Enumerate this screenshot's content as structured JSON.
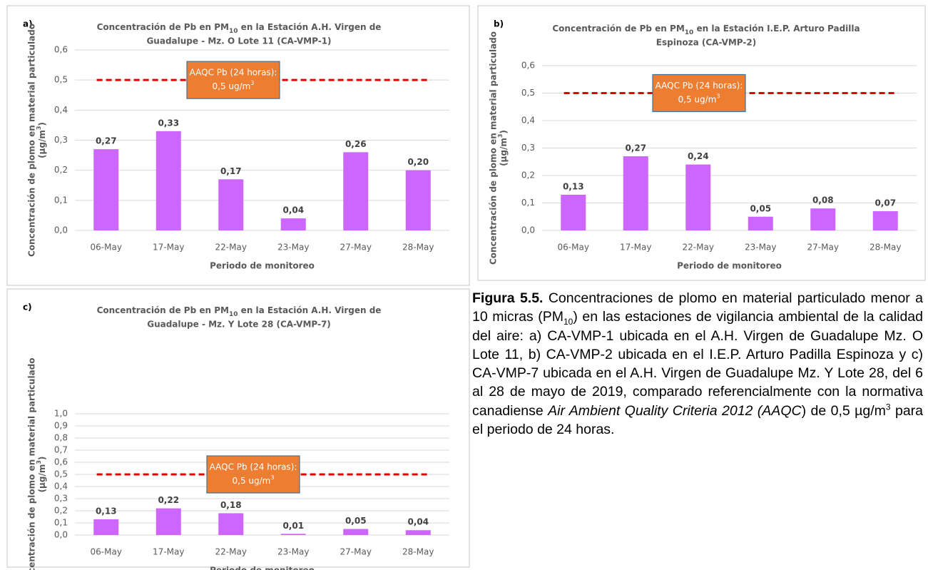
{
  "chart_data": [
    {
      "type": "bar",
      "panel_label": "a)",
      "title": [
        "Concentración de Pb en PM",
        "10",
        " en la Estación A.H. Virgen de",
        "Guadalupe - Mz. O Lote 11 (CA-VMP-1)"
      ],
      "categories": [
        "06-May",
        "17-May",
        "22-May",
        "23-May",
        "27-May",
        "28-May"
      ],
      "values": [
        0.27,
        0.33,
        0.17,
        0.04,
        0.26,
        0.2
      ],
      "value_labels": [
        "0,27",
        "0,33",
        "0,17",
        "0,04",
        "0,26",
        "0,20"
      ],
      "color": "#cc66ff",
      "ylim": [
        0,
        0.6
      ],
      "yticks": [
        {
          "value": 0,
          "label": "0,0"
        },
        {
          "value": 0.1,
          "label": "0,1"
        },
        {
          "value": 0.2,
          "label": "0,2"
        },
        {
          "value": 0.3,
          "label": "0,3"
        },
        {
          "value": 0.4,
          "label": "0,4"
        },
        {
          "value": 0.5,
          "label": "0,5"
        },
        {
          "value": 0.6,
          "label": "0,6"
        }
      ],
      "grid": true,
      "y_label": [
        "Concentración de plomo en material particulado",
        "(µg/m",
        "3",
        ")"
      ],
      "x_label": "Periodo de monitoreo",
      "reference_line": {
        "value": 0.5,
        "color": "#e00000"
      },
      "annotation": [
        "AAQC Pb (24 horas):",
        "0,5 ug/m",
        "3"
      ]
    },
    {
      "type": "bar",
      "panel_label": "b)",
      "title": [
        "Concentración de Pb en PM",
        "10",
        " en la Estación I.E.P. Arturo Padilla",
        "Espinoza (CA-VMP-2)"
      ],
      "categories": [
        "06-May",
        "17-May",
        "22-May",
        "23-May",
        "27-May",
        "28-May"
      ],
      "values": [
        0.13,
        0.27,
        0.24,
        0.05,
        0.08,
        0.07
      ],
      "value_labels": [
        "0,13",
        "0,27",
        "0,24",
        "0,05",
        "0,08",
        "0,07"
      ],
      "color": "#cc66ff",
      "ylim": [
        0,
        0.6
      ],
      "yticks": [
        {
          "value": 0,
          "label": "0,0"
        },
        {
          "value": 0.1,
          "label": "0,1"
        },
        {
          "value": 0.2,
          "label": "0,2"
        },
        {
          "value": 0.3,
          "label": "0,3"
        },
        {
          "value": 0.4,
          "label": "0,4"
        },
        {
          "value": 0.5,
          "label": "0,5"
        },
        {
          "value": 0.6,
          "label": "0,6"
        }
      ],
      "grid": true,
      "y_label": [
        "Concentración de plomo en material particulado",
        "(µg/m",
        "3",
        ")"
      ],
      "x_label": "Periodo de monitoreo",
      "reference_line": {
        "value": 0.5,
        "color": "#e00000"
      },
      "annotation": [
        "AAQC Pb (24 horas):",
        "0,5 ug/m",
        "3"
      ]
    },
    {
      "type": "bar",
      "panel_label": "c)",
      "title": [
        "Concentración de Pb en PM",
        "10",
        " en la Estación A.H. Virgen de",
        "Guadalupe - Mz. Y Lote 28 (CA-VMP-7)"
      ],
      "categories": [
        "06-May",
        "17-May",
        "22-May",
        "23-May",
        "27-May",
        "28-May"
      ],
      "values": [
        0.13,
        0.22,
        0.18,
        0.01,
        0.05,
        0.04
      ],
      "value_labels": [
        "0,13",
        "0,22",
        "0,18",
        "0,01",
        "0,05",
        "0,04"
      ],
      "color": "#cc66ff",
      "ylim": [
        0,
        1.0
      ],
      "yticks": [
        {
          "value": 0,
          "label": "0,0"
        },
        {
          "value": 0.1,
          "label": "0,1"
        },
        {
          "value": 0.2,
          "label": "0,2"
        },
        {
          "value": 0.3,
          "label": "0,3"
        },
        {
          "value": 0.4,
          "label": "0,4"
        },
        {
          "value": 0.5,
          "label": "0,5"
        },
        {
          "value": 0.6,
          "label": "0,6"
        },
        {
          "value": 0.7,
          "label": "0,7"
        },
        {
          "value": 0.8,
          "label": "0,8"
        },
        {
          "value": 0.9,
          "label": "0,9"
        },
        {
          "value": 1.0,
          "label": "1,0"
        }
      ],
      "grid": true,
      "y_label": [
        "Concentración de plomo en material particulado",
        "(µg/m",
        "3",
        ")"
      ],
      "x_label": "Periodo de monitoreo",
      "reference_line": {
        "value": 0.5,
        "color": "#e00000"
      },
      "annotation": [
        "AAQC Pb (24 horas):",
        "0,5 ug/m",
        "3"
      ]
    }
  ],
  "caption": [
    "Figura 5.5.",
    " Concentraciones de plomo en material particulado menor a 10 micras (PM",
    "10",
    ") en las estaciones de vigilancia ambiental de la calidad del aire: a) CA-VMP-1 ubicada en el A.H. Virgen de Guadalupe Mz. O Lote 11, b) CA-VMP-2 ubicada en el I.E.P. Arturo Padilla Espinoza y c) CA-VMP-7 ubicada en el A.H. Virgen de Guadalupe Mz. Y Lote 28, del 6 al 28 de mayo de 2019, comparado referencialmente con la normativa canadiense ",
    "Air Ambient Quality Criteria 2012 (AAQC",
    ") de 0,5 µg/m",
    "3",
    " para el periodo de 24 horas."
  ]
}
